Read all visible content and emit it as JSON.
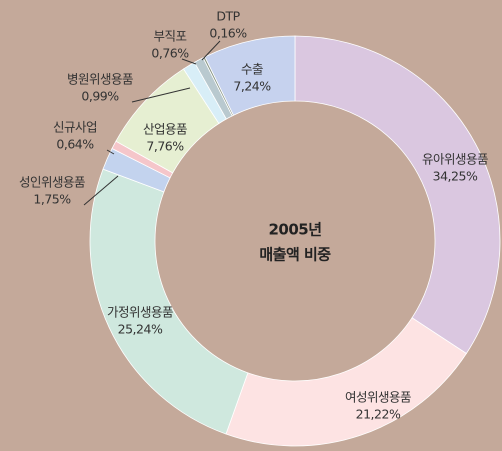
{
  "chart_data": {
    "type": "pie",
    "donut": true,
    "title": "2005년",
    "subtitle": "매출액 비중",
    "categories": [
      "유아위생용품",
      "여성위생용품",
      "가정위생용품",
      "성인위생용품",
      "신규사업",
      "산업용품",
      "병원위생용품",
      "부직포",
      "DTP",
      "수출"
    ],
    "values": [
      34.25,
      21.22,
      25.24,
      1.75,
      0.64,
      7.76,
      0.99,
      0.76,
      0.16,
      7.24
    ],
    "value_labels": [
      "34,25%",
      "21,22%",
      "25,24%",
      "1,75%",
      "0,64%",
      "7,76%",
      "0,99%",
      "0,76%",
      "0,16%",
      "7,24%"
    ],
    "colors": [
      "#dac7e0",
      "#fde3e3",
      "#cfe8de",
      "#c3d3ee",
      "#f5c6ca",
      "#e6efd2",
      "#d8eef7",
      "#b9c9cf",
      "#8f9c8c",
      "#c6d2ee"
    ]
  }
}
